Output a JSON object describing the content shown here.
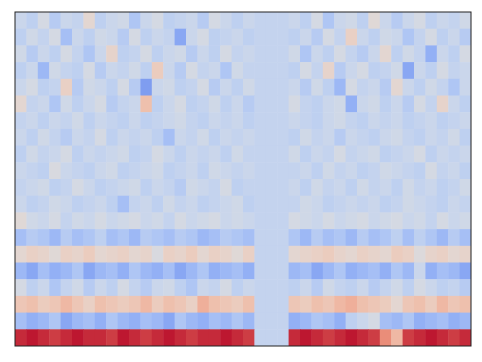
{
  "chart_data": {
    "type": "heatmap",
    "tick_labels": false,
    "zlim": [
      -1,
      1
    ],
    "cells": [
      [
        -0.2,
        -0.3,
        -0.1,
        -0.35,
        -0.2,
        -0.25,
        0.1,
        -0.3,
        -0.2,
        -0.15,
        -0.4,
        -0.2,
        -0.1,
        -0.3,
        -0.25,
        -0.2,
        -0.35,
        -0.1,
        -0.2,
        -0.3,
        -0.2,
        -0.25,
        -0.25,
        -0.25,
        -0.2,
        -0.3,
        -0.1,
        -0.4,
        -0.2,
        -0.15,
        -0.3,
        0.05,
        -0.2,
        -0.35,
        -0.2,
        -0.1,
        -0.3,
        -0.2,
        -0.25,
        -0.15
      ],
      [
        -0.3,
        -0.15,
        -0.25,
        -0.1,
        -0.45,
        -0.2,
        -0.3,
        -0.15,
        -0.2,
        -0.35,
        -0.1,
        -0.3,
        -0.2,
        -0.25,
        -0.6,
        -0.2,
        -0.1,
        -0.3,
        -0.25,
        -0.2,
        -0.3,
        -0.25,
        -0.25,
        -0.25,
        -0.3,
        -0.2,
        -0.35,
        -0.1,
        -0.25,
        0.2,
        -0.2,
        -0.3,
        -0.15,
        -0.2,
        -0.4,
        -0.25,
        -0.1,
        -0.3,
        -0.2,
        -0.35
      ],
      [
        -0.15,
        -0.35,
        -0.2,
        -0.3,
        -0.1,
        -0.25,
        -0.4,
        -0.2,
        0.15,
        -0.3,
        -0.25,
        -0.1,
        -0.3,
        -0.2,
        -0.15,
        -0.35,
        -0.2,
        -0.3,
        -0.1,
        -0.25,
        -0.2,
        -0.25,
        -0.25,
        -0.25,
        -0.15,
        -0.4,
        -0.2,
        -0.3,
        -0.1,
        -0.25,
        -0.35,
        -0.2,
        0.1,
        -0.3,
        -0.15,
        -0.25,
        -0.55,
        -0.2,
        -0.3,
        -0.1
      ],
      [
        -0.3,
        -0.2,
        -0.5,
        -0.15,
        -0.25,
        -0.3,
        -0.1,
        -0.35,
        -0.2,
        -0.25,
        -0.15,
        -0.3,
        0.25,
        -0.2,
        -0.35,
        -0.1,
        -0.25,
        -0.2,
        -0.4,
        -0.15,
        -0.25,
        -0.25,
        -0.25,
        -0.25,
        -0.3,
        -0.1,
        -0.25,
        0.15,
        -0.35,
        -0.2,
        -0.1,
        -0.3,
        -0.25,
        -0.15,
        -0.6,
        -0.2,
        -0.3,
        -0.1,
        -0.25,
        -0.2
      ],
      [
        -0.2,
        -0.1,
        -0.3,
        -0.25,
        0.2,
        -0.35,
        -0.15,
        -0.2,
        -0.3,
        -0.1,
        -0.35,
        -0.65,
        -0.2,
        -0.15,
        -0.3,
        -0.25,
        -0.1,
        -0.35,
        -0.2,
        -0.3,
        -0.15,
        -0.25,
        -0.25,
        -0.25,
        -0.2,
        -0.35,
        -0.15,
        -0.3,
        -0.5,
        -0.1,
        -0.25,
        -0.2,
        -0.35,
        0.1,
        -0.2,
        -0.3,
        -0.15,
        -0.25,
        -0.4,
        -0.2
      ],
      [
        0.1,
        -0.25,
        -0.2,
        -0.4,
        -0.15,
        -0.3,
        -0.2,
        -0.1,
        -0.35,
        -0.25,
        -0.2,
        0.35,
        -0.3,
        -0.2,
        -0.1,
        -0.3,
        -0.25,
        -0.15,
        -0.3,
        -0.2,
        -0.35,
        -0.25,
        -0.25,
        -0.25,
        -0.1,
        -0.25,
        -0.3,
        -0.2,
        -0.15,
        -0.55,
        -0.2,
        -0.15,
        -0.3,
        -0.2,
        -0.35,
        -0.1,
        -0.25,
        0.15,
        -0.2,
        -0.3
      ],
      [
        -0.25,
        -0.2,
        -0.3,
        -0.2,
        -0.25,
        -0.15,
        -0.3,
        -0.2,
        -0.25,
        -0.3,
        -0.2,
        -0.3,
        -0.25,
        -0.2,
        -0.15,
        -0.25,
        -0.3,
        -0.2,
        -0.25,
        -0.2,
        -0.3,
        -0.25,
        -0.25,
        -0.25,
        -0.2,
        -0.25,
        -0.3,
        -0.2,
        -0.15,
        -0.25,
        -0.3,
        -0.2,
        -0.25,
        -0.2,
        -0.3,
        -0.25,
        -0.2,
        -0.3,
        -0.25,
        -0.2
      ],
      [
        -0.2,
        -0.3,
        -0.15,
        -0.25,
        -0.35,
        -0.2,
        -0.25,
        -0.1,
        -0.3,
        -0.2,
        -0.25,
        -0.2,
        -0.3,
        -0.45,
        -0.2,
        -0.25,
        -0.15,
        -0.3,
        -0.2,
        -0.25,
        -0.2,
        -0.25,
        -0.25,
        -0.25,
        -0.3,
        -0.15,
        -0.25,
        -0.2,
        -0.35,
        -0.2,
        -0.25,
        -0.3,
        -0.2,
        -0.15,
        -0.25,
        -0.3,
        -0.2,
        -0.25,
        -0.15,
        -0.3
      ],
      [
        -0.3,
        -0.15,
        -0.25,
        -0.2,
        -0.1,
        -0.3,
        -0.2,
        -0.25,
        -0.2,
        -0.15,
        -0.3,
        -0.25,
        -0.1,
        -0.2,
        -0.3,
        -0.2,
        -0.25,
        -0.2,
        -0.3,
        -0.15,
        -0.25,
        -0.25,
        -0.25,
        -0.25,
        -0.15,
        -0.3,
        -0.2,
        -0.25,
        -0.1,
        -0.25,
        -0.2,
        -0.15,
        -0.3,
        -0.25,
        -0.2,
        -0.1,
        -0.3,
        -0.2,
        -0.25,
        -0.2
      ],
      [
        -0.2,
        -0.25,
        -0.3,
        -0.05,
        -0.2,
        -0.25,
        -0.3,
        -0.2,
        -0.15,
        -0.3,
        -0.25,
        -0.2,
        -0.15,
        -0.3,
        -0.25,
        -0.2,
        -0.3,
        -0.15,
        -0.2,
        -0.25,
        -0.2,
        -0.25,
        -0.25,
        -0.25,
        -0.25,
        -0.2,
        -0.3,
        -0.15,
        -0.25,
        -0.2,
        -0.3,
        -0.25,
        -0.15,
        -0.2,
        -0.25,
        -0.3,
        -0.1,
        -0.25,
        -0.2,
        -0.3
      ],
      [
        -0.25,
        -0.2,
        -0.15,
        -0.3,
        -0.25,
        -0.1,
        -0.2,
        -0.3,
        -0.25,
        -0.2,
        -0.15,
        -0.3,
        -0.2,
        -0.25,
        -0.35,
        -0.15,
        -0.2,
        -0.25,
        -0.1,
        -0.3,
        -0.25,
        -0.25,
        -0.25,
        -0.25,
        -0.2,
        -0.3,
        -0.15,
        -0.25,
        -0.2,
        -0.3,
        -0.15,
        -0.25,
        -0.2,
        -0.3,
        -0.15,
        -0.25,
        -0.2,
        -0.3,
        -0.25,
        -0.15
      ],
      [
        -0.2,
        -0.3,
        -0.25,
        -0.15,
        -0.2,
        -0.3,
        -0.25,
        -0.2,
        -0.3,
        -0.45,
        -0.25,
        -0.2,
        -0.3,
        -0.15,
        -0.25,
        -0.2,
        -0.3,
        -0.25,
        -0.2,
        -0.15,
        -0.3,
        -0.25,
        -0.25,
        -0.25,
        -0.25,
        -0.15,
        -0.2,
        -0.3,
        -0.25,
        -0.2,
        -0.25,
        -0.2,
        -0.3,
        -0.25,
        -0.15,
        -0.2,
        -0.25,
        -0.3,
        -0.2,
        -0.25
      ],
      [
        0.05,
        -0.15,
        -0.2,
        -0.1,
        -0.25,
        -0.15,
        -0.2,
        -0.1,
        -0.2,
        -0.15,
        -0.1,
        -0.2,
        -0.15,
        -0.25,
        -0.1,
        -0.2,
        -0.15,
        -0.1,
        -0.2,
        -0.15,
        -0.2,
        -0.25,
        -0.25,
        -0.25,
        -0.1,
        -0.15,
        -0.2,
        -0.1,
        -0.2,
        -0.15,
        -0.1,
        -0.2,
        -0.15,
        -0.1,
        -0.2,
        -0.15,
        -0.25,
        -0.1,
        -0.2,
        -0.15
      ],
      [
        -0.45,
        -0.35,
        -0.4,
        -0.5,
        -0.35,
        -0.45,
        -0.4,
        -0.3,
        -0.45,
        -0.4,
        -0.5,
        -0.35,
        -0.4,
        -0.45,
        -0.35,
        -0.4,
        -0.5,
        -0.45,
        -0.35,
        -0.4,
        -0.45,
        -0.25,
        -0.25,
        -0.25,
        -0.4,
        -0.5,
        -0.35,
        -0.45,
        -0.4,
        -0.5,
        -0.35,
        -0.45,
        -0.4,
        -0.3,
        -0.45,
        -0.3,
        -0.4,
        -0.5,
        -0.35,
        -0.45
      ],
      [
        0.1,
        0.2,
        0.15,
        0.05,
        0.2,
        0.15,
        0.25,
        0.1,
        0.15,
        0.2,
        0.1,
        0.15,
        -0.05,
        0.2,
        0.15,
        0.25,
        0.1,
        0.2,
        0.15,
        0.05,
        0.2,
        -0.25,
        -0.25,
        -0.25,
        0.1,
        0.15,
        0.2,
        0.25,
        0.15,
        0.1,
        0.2,
        0.15,
        0.1,
        0.25,
        0.2,
        0.0,
        0.15,
        0.2,
        0.1,
        0.15
      ],
      [
        -0.5,
        -0.6,
        -0.45,
        -0.55,
        -0.5,
        -0.4,
        -0.6,
        -0.5,
        -0.45,
        -0.55,
        -0.4,
        -0.5,
        -0.55,
        -0.45,
        -0.6,
        -0.5,
        -0.4,
        -0.55,
        -0.5,
        -0.45,
        -0.55,
        -0.25,
        -0.25,
        -0.25,
        -0.5,
        -0.45,
        -0.6,
        -0.5,
        -0.4,
        -0.55,
        -0.5,
        -0.45,
        -0.55,
        -0.4,
        -0.5,
        -0.2,
        -0.55,
        -0.45,
        -0.5,
        -0.6
      ],
      [
        -0.1,
        -0.3,
        -0.2,
        -0.4,
        -0.25,
        -0.15,
        -0.35,
        -0.2,
        -0.3,
        -0.1,
        -0.25,
        -0.35,
        -0.2,
        -0.15,
        -0.3,
        -0.4,
        -0.2,
        -0.25,
        -0.1,
        -0.3,
        -0.2,
        -0.25,
        -0.25,
        -0.25,
        -0.3,
        -0.2,
        -0.35,
        -0.15,
        -0.25,
        -0.3,
        -0.2,
        -0.35,
        -0.25,
        -0.15,
        -0.3,
        -0.1,
        -0.2,
        -0.3,
        -0.25,
        -0.35
      ],
      [
        0.3,
        0.35,
        0.25,
        0.3,
        0.4,
        0.3,
        0.2,
        0.35,
        0.3,
        0.25,
        0.3,
        0.4,
        0.25,
        0.35,
        0.3,
        0.2,
        0.45,
        0.35,
        0.3,
        0.25,
        0.35,
        -0.25,
        -0.25,
        -0.25,
        0.3,
        0.25,
        0.35,
        0.3,
        0.4,
        0.45,
        0.35,
        0.3,
        0.25,
        0.1,
        0.3,
        0.35,
        0.25,
        0.4,
        0.3,
        0.35
      ],
      [
        -0.45,
        -0.55,
        -0.5,
        -0.4,
        -0.6,
        -0.5,
        -0.45,
        -0.55,
        -0.4,
        -0.5,
        -0.55,
        -0.45,
        -0.5,
        -0.6,
        -0.4,
        -0.5,
        -0.55,
        -0.45,
        -0.5,
        -0.4,
        -0.5,
        -0.25,
        -0.25,
        -0.25,
        -0.55,
        -0.5,
        -0.4,
        -0.45,
        -0.55,
        -0.3,
        -0.2,
        -0.1,
        -0.45,
        -0.5,
        -0.4,
        -0.55,
        -0.5,
        -0.45,
        -0.55,
        -0.5
      ],
      [
        0.9,
        0.95,
        0.9,
        0.85,
        0.9,
        0.95,
        0.9,
        0.9,
        0.85,
        0.95,
        0.9,
        0.85,
        0.9,
        0.95,
        0.9,
        0.85,
        0.9,
        0.9,
        0.95,
        0.9,
        0.85,
        -0.25,
        -0.25,
        -0.25,
        0.9,
        0.95,
        0.9,
        0.85,
        0.9,
        0.95,
        0.9,
        0.85,
        0.6,
        0.4,
        0.85,
        0.9,
        0.95,
        0.9,
        0.85,
        0.9
      ]
    ]
  }
}
